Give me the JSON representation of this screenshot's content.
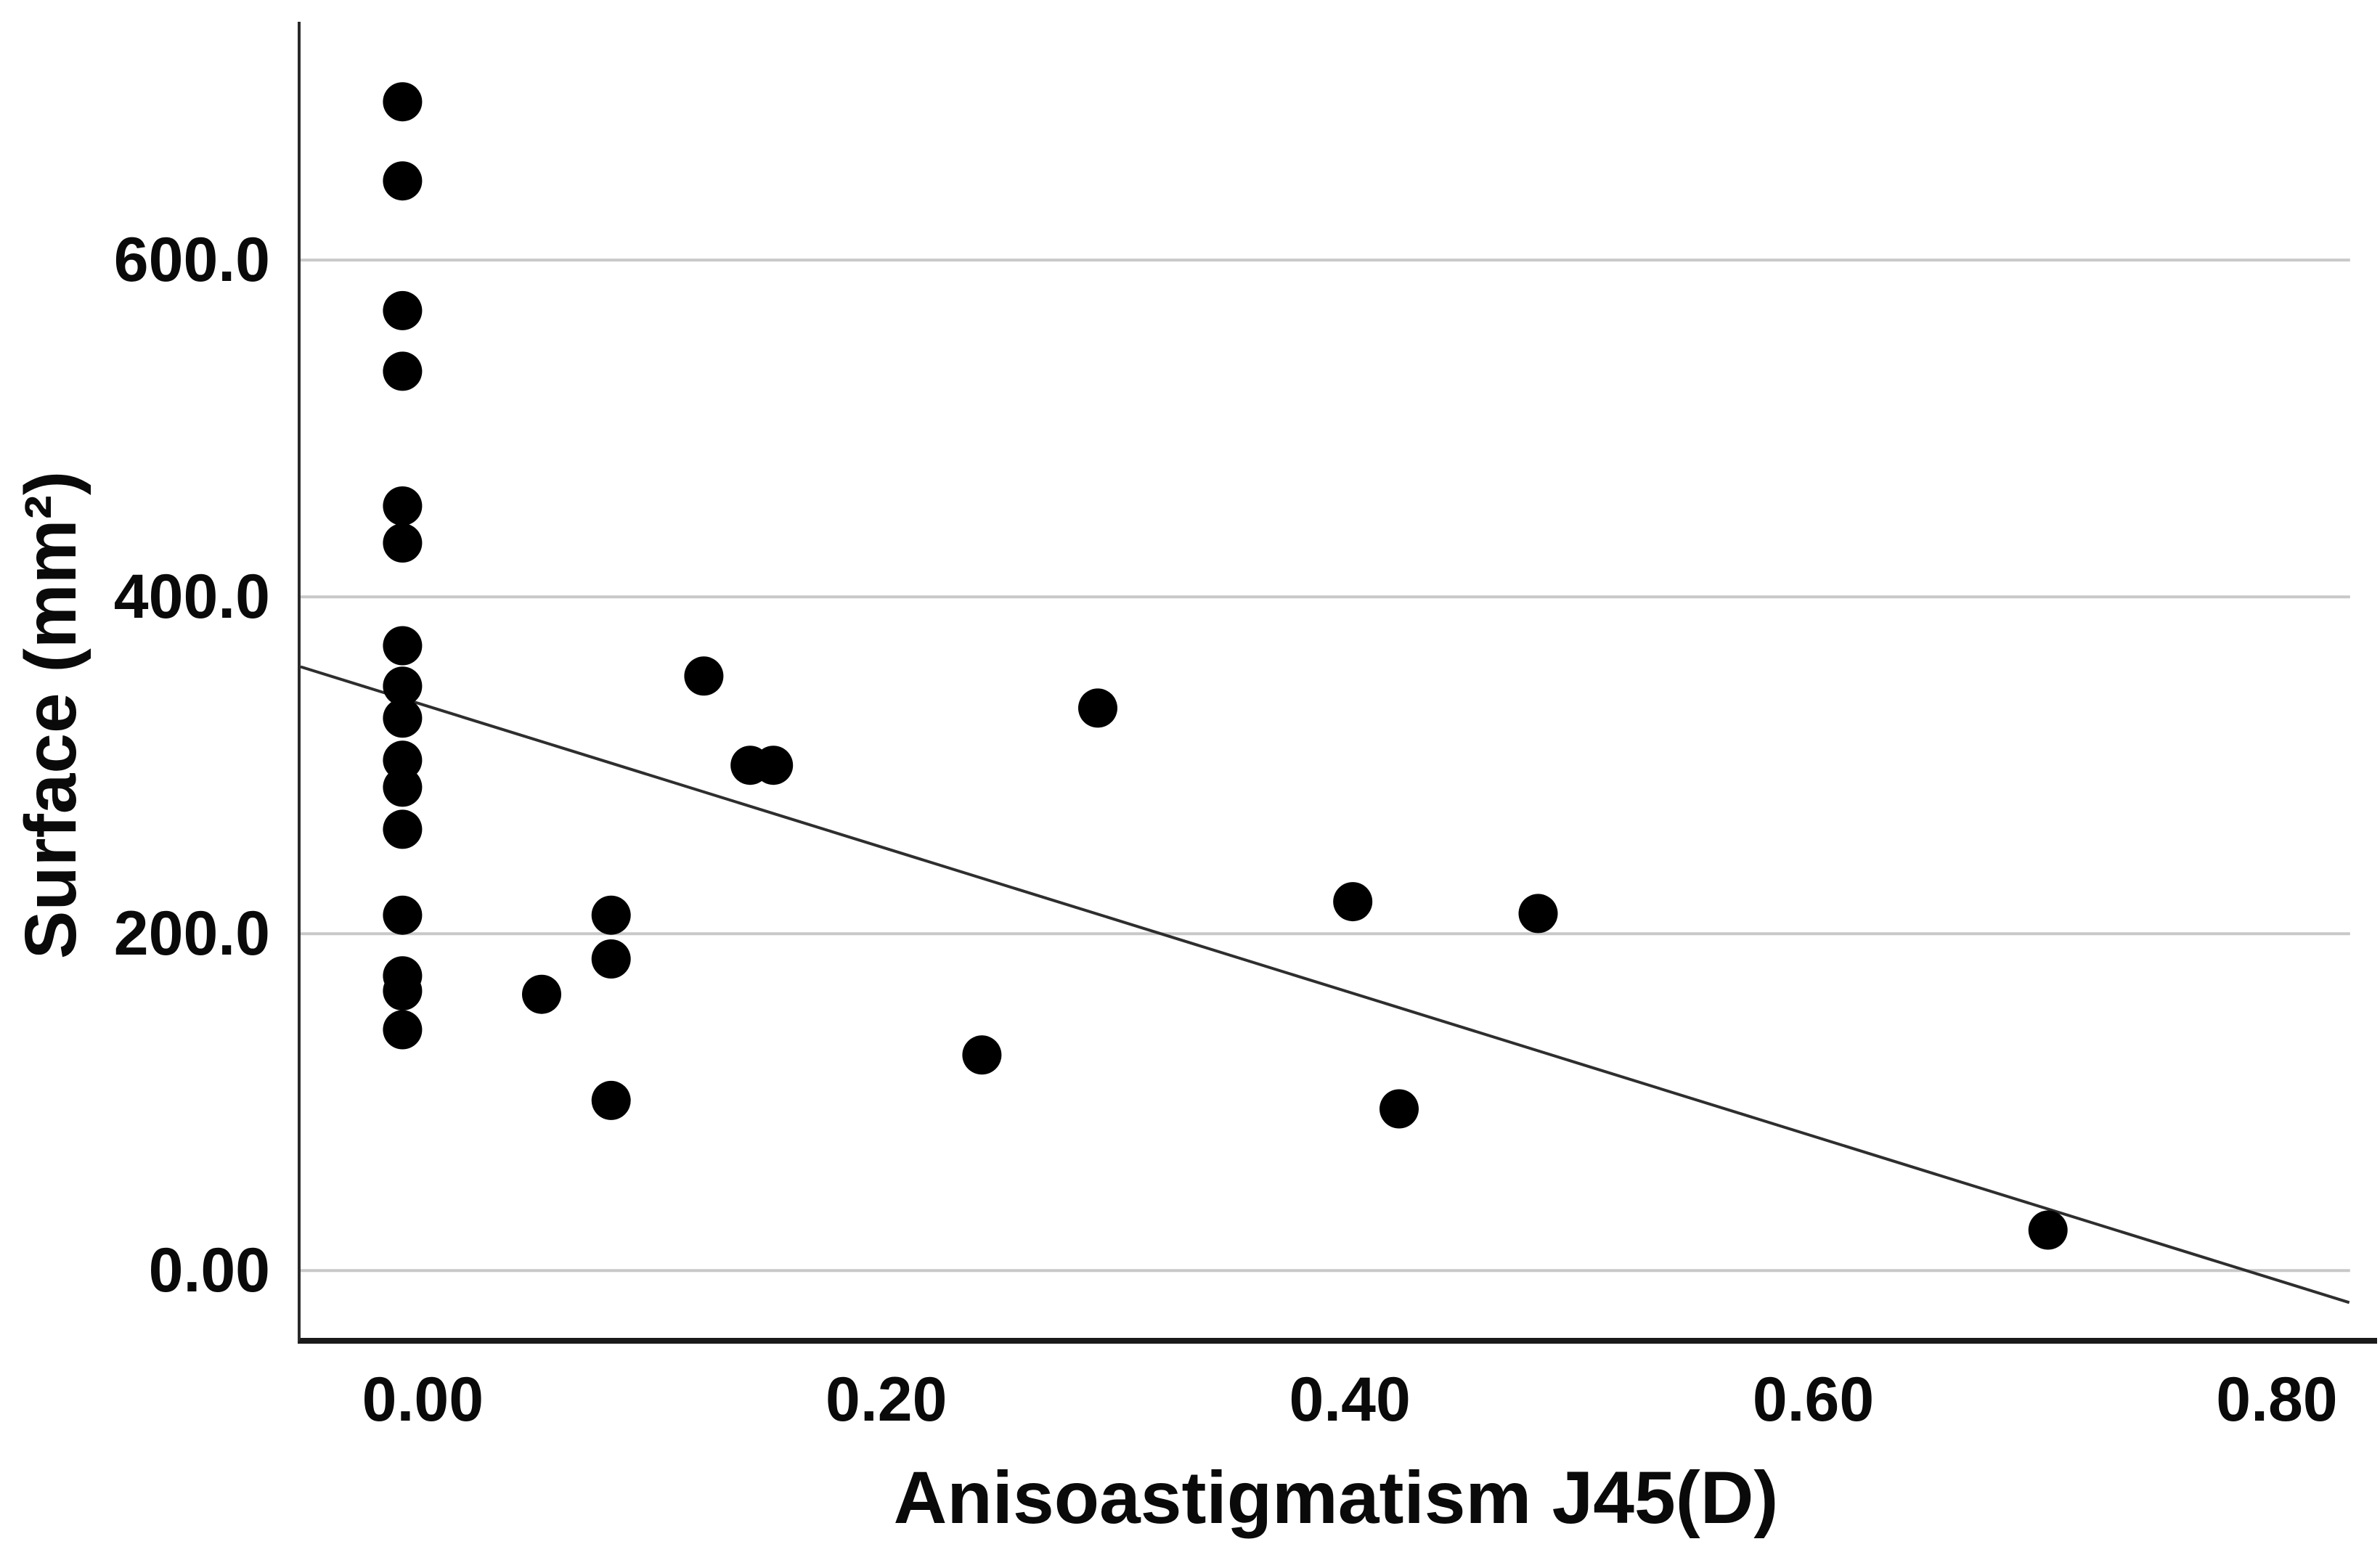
{
  "chart_data": {
    "type": "scatter",
    "title": "",
    "xlabel": "Anisoastigmatism J45(D)",
    "ylabel": "Surface (mm²)",
    "xlim": [
      -0.054,
      0.842
    ],
    "ylim": [
      -40,
      741.5
    ],
    "grid": "horizontal-only",
    "legend_position": "none",
    "x_ticks": [
      {
        "value": 0.0,
        "label": "0.00"
      },
      {
        "value": 0.2,
        "label": "0.20"
      },
      {
        "value": 0.4,
        "label": "0.40"
      },
      {
        "value": 0.6,
        "label": "0.60"
      },
      {
        "value": 0.8,
        "label": "0.80"
      }
    ],
    "y_ticks": [
      {
        "value": 0,
        "label": "0.00"
      },
      {
        "value": 200,
        "label": "200.0"
      },
      {
        "value": 400,
        "label": "400.0"
      },
      {
        "value": 600,
        "label": "600.0"
      }
    ],
    "points": [
      [
        -0.01,
        694
      ],
      [
        -0.01,
        647
      ],
      [
        -0.01,
        570
      ],
      [
        -0.01,
        534
      ],
      [
        -0.01,
        454
      ],
      [
        -0.01,
        432
      ],
      [
        -0.01,
        371
      ],
      [
        -0.01,
        347
      ],
      [
        -0.01,
        328
      ],
      [
        -0.01,
        303
      ],
      [
        -0.01,
        287
      ],
      [
        -0.01,
        262
      ],
      [
        -0.01,
        211
      ],
      [
        -0.01,
        175
      ],
      [
        -0.01,
        166
      ],
      [
        -0.01,
        143
      ],
      [
        0.05,
        164
      ],
      [
        0.08,
        211
      ],
      [
        0.08,
        185
      ],
      [
        0.08,
        101
      ],
      [
        0.12,
        353
      ],
      [
        0.14,
        300
      ],
      [
        0.15,
        300
      ],
      [
        0.24,
        128
      ],
      [
        0.29,
        334
      ],
      [
        0.4,
        219
      ],
      [
        0.42,
        96
      ],
      [
        0.48,
        212
      ],
      [
        0.7,
        24
      ]
    ],
    "fit_line": {
      "x1": -0.054,
      "y1": 358.5,
      "x2": 0.83,
      "y2": -19.0
    },
    "marker_radius_px": 27,
    "colors": {
      "point": "#000000",
      "gridline": "#c8c8c8",
      "axis": "#1a1a1a",
      "fit_line": "#2e2e2e",
      "text": "#0a0a0a",
      "background": "#ffffff"
    }
  }
}
